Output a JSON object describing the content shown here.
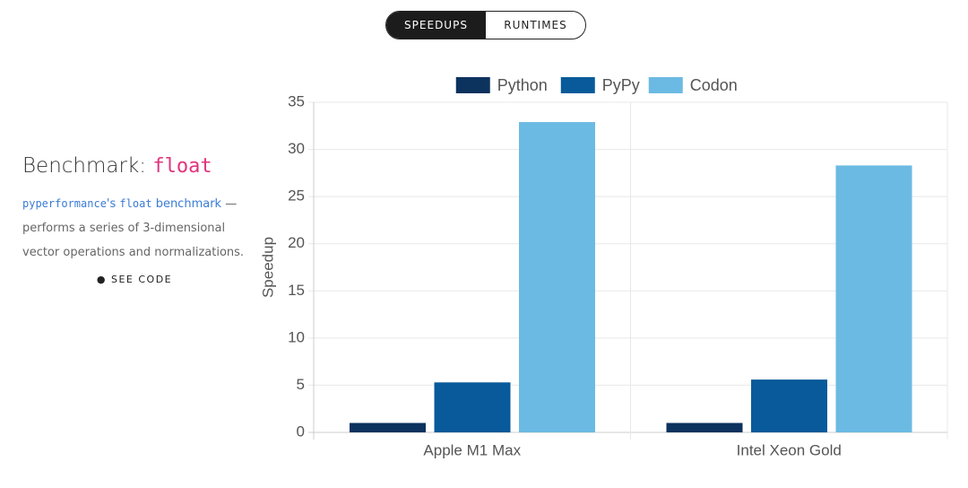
{
  "toggle": {
    "options": [
      "SPEEDUPS",
      "RUNTIMES"
    ]
  },
  "info": {
    "title": "Benchmark:",
    "title_code": "float",
    "description": [
      "pyperformance",
      "'s",
      "float",
      "benchmark",
      "— performs a series of 3-dimensional vector operations and normalizations."
    ],
    "link": "SEE CODE"
  },
  "chart_data": {
    "type": "bar",
    "ylabel": "Speedup",
    "categories": [
      "Apple M1 Max",
      "Intel Xeon Gold"
    ],
    "series": [
      {
        "name": "Python",
        "color": "#0c325e",
        "values": [
          1,
          1
        ]
      },
      {
        "name": "PyPy",
        "color": "#085a9a",
        "values": [
          5.3,
          5.6
        ]
      },
      {
        "name": "Codon",
        "color": "#6bbae3",
        "values": [
          32.9,
          28.3
        ]
      }
    ],
    "ylim": [
      0,
      35
    ],
    "yticks": [
      0,
      5,
      10,
      15,
      20,
      25,
      30,
      35
    ],
    "grid": true,
    "legend": "top"
  }
}
